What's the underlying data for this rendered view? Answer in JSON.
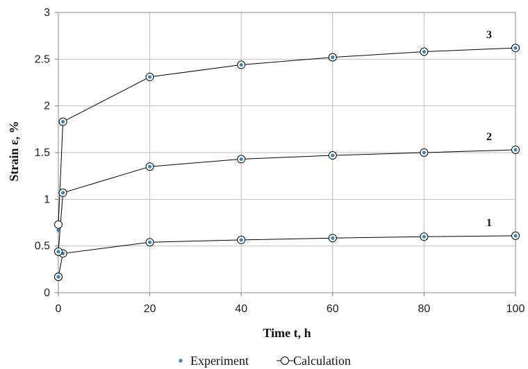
{
  "chart_data": {
    "type": "line",
    "xlabel": "Time t, h",
    "ylabel": "Strain ε, %",
    "xlim": [
      0,
      100
    ],
    "ylim": [
      0,
      3
    ],
    "xticks": [
      0,
      20,
      40,
      60,
      80,
      100
    ],
    "yticks": [
      0,
      0.5,
      1,
      1.5,
      2,
      2.5,
      3
    ],
    "xtick_labels": [
      "0",
      "20",
      "40",
      "60",
      "80",
      "100"
    ],
    "ytick_labels": [
      "0",
      "0.5",
      "1",
      "1.5",
      "2",
      "2.5",
      "3"
    ],
    "grid": true,
    "legend_position": "bottom-center",
    "legend": [
      {
        "label": "Experiment",
        "marker": "filled-dot",
        "color": "#2e86c8"
      },
      {
        "label": "Calculation",
        "marker": "open-circle-line",
        "color": "#000000"
      }
    ],
    "colors": {
      "experiment": "#2e86c8",
      "calculation": "#000000",
      "grid": "#bdbdbd"
    },
    "series": [
      {
        "curve_label": "1",
        "x": [
          0,
          1,
          20,
          40,
          60,
          80,
          100
        ],
        "calculation": [
          0.17,
          0.42,
          0.54,
          0.565,
          0.585,
          0.6,
          0.61
        ],
        "experiment": [
          0.17,
          0.42,
          0.54,
          0.565,
          0.585,
          0.6,
          0.61
        ],
        "experiment_extra": [
          {
            "x": 0,
            "y": 0.41
          }
        ]
      },
      {
        "curve_label": "2",
        "x": [
          0,
          1,
          20,
          40,
          60,
          80,
          100
        ],
        "calculation": [
          0.44,
          1.07,
          1.35,
          1.43,
          1.47,
          1.5,
          1.53
        ],
        "experiment": [
          0.44,
          1.07,
          1.35,
          1.43,
          1.47,
          1.5,
          1.53
        ],
        "experiment_extra": []
      },
      {
        "curve_label": "3",
        "x": [
          0,
          1,
          20,
          40,
          60,
          80,
          100
        ],
        "calculation": [
          0.73,
          1.83,
          2.31,
          2.44,
          2.52,
          2.58,
          2.62
        ],
        "experiment": [
          0.67,
          1.83,
          2.31,
          2.44,
          2.52,
          2.58,
          2.62
        ],
        "experiment_extra": []
      }
    ]
  }
}
